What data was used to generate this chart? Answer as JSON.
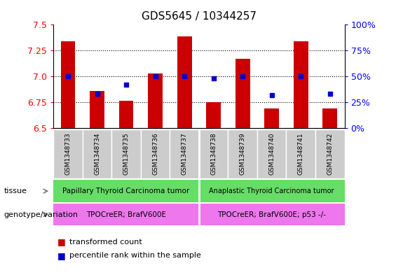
{
  "title": "GDS5645 / 10344257",
  "samples": [
    "GSM1348733",
    "GSM1348734",
    "GSM1348735",
    "GSM1348736",
    "GSM1348737",
    "GSM1348738",
    "GSM1348739",
    "GSM1348740",
    "GSM1348741",
    "GSM1348742"
  ],
  "transformed_count": [
    7.34,
    6.86,
    6.76,
    7.03,
    7.39,
    6.75,
    7.17,
    6.69,
    7.34,
    6.69
  ],
  "percentile_rank": [
    50,
    33,
    42,
    50,
    50,
    48,
    50,
    32,
    50,
    33
  ],
  "ylim": [
    6.5,
    7.5
  ],
  "yticks_left": [
    6.5,
    6.75,
    7.0,
    7.25,
    7.5
  ],
  "yticks_right": [
    0,
    25,
    50,
    75,
    100
  ],
  "bar_color": "#cc0000",
  "dot_color": "#0000cc",
  "bar_bottom": 6.5,
  "tissue_group1": "Papillary Thyroid Carcinoma tumor",
  "tissue_group2": "Anaplastic Thyroid Carcinoma tumor",
  "genotype_group1": "TPOCreER; BrafV600E",
  "genotype_group2": "TPOCreER; BrafV600E; p53 -/-",
  "tissue_color1": "#66dd66",
  "tissue_color2": "#66dd66",
  "genotype_color1": "#ee77ee",
  "genotype_color2": "#ee77ee",
  "n_group1": 5,
  "n_group2": 5,
  "legend_red": "transformed count",
  "legend_blue": "percentile rank within the sample",
  "label_row1": "tissue",
  "label_row2": "genotype/variation"
}
